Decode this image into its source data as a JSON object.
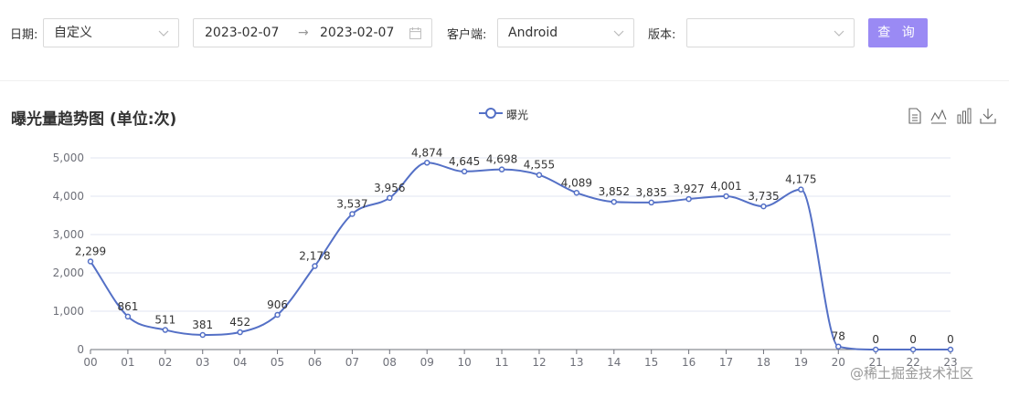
{
  "filters": {
    "date_label": "日期:",
    "date_mode": "自定义",
    "start_date": "2023-02-07",
    "range_arrow": "→",
    "end_date": "2023-02-07",
    "client_label": "客户端:",
    "client_value": "Android",
    "version_label": "版本:",
    "version_value": "",
    "query_button": "查 询"
  },
  "icons": {
    "date_mode_caret": "chevron-down-icon",
    "calendar": "calendar-icon",
    "client_caret": "chevron-down-icon",
    "version_caret": "chevron-down-icon",
    "tool_data_view": "document-icon",
    "tool_line": "line-chart-icon",
    "tool_bar": "bar-chart-icon",
    "tool_save": "download-icon"
  },
  "colors": {
    "series": "#5470c6",
    "primary_button": "#9a8af4"
  },
  "watermark": "@稀土掘金技术社区",
  "chart_data": {
    "type": "line",
    "smooth": true,
    "title": "曝光量趋势图 (单位:次)",
    "legend": {
      "position": "top-center"
    },
    "categories": [
      "00",
      "01",
      "02",
      "03",
      "04",
      "05",
      "06",
      "07",
      "08",
      "09",
      "10",
      "11",
      "12",
      "13",
      "14",
      "15",
      "16",
      "17",
      "18",
      "19",
      "20",
      "21",
      "22",
      "23"
    ],
    "series": [
      {
        "name": "曝光",
        "values": [
          2299,
          861,
          511,
          381,
          452,
          906,
          2178,
          3537,
          3956,
          4874,
          4645,
          4698,
          4555,
          4089,
          3852,
          3835,
          3927,
          4001,
          3735,
          4175,
          78,
          0,
          0,
          0
        ],
        "labels": [
          "2,299",
          "861",
          "511",
          "381",
          "452",
          "906",
          "2,178",
          "3,537",
          "3,956",
          "4,874",
          "4,645",
          "4,698",
          "4,555",
          "4,089",
          "3,852",
          "3,835",
          "3,927",
          "4,001",
          "3,735",
          "4,175",
          "78",
          "0",
          "0",
          "0"
        ]
      }
    ],
    "yticks": [
      0,
      1000,
      2000,
      3000,
      4000,
      5000
    ],
    "ytick_labels": [
      "0",
      "1,000",
      "2,000",
      "3,000",
      "4,000",
      "5,000"
    ],
    "ylim": [
      0,
      5000
    ],
    "grid": true
  }
}
